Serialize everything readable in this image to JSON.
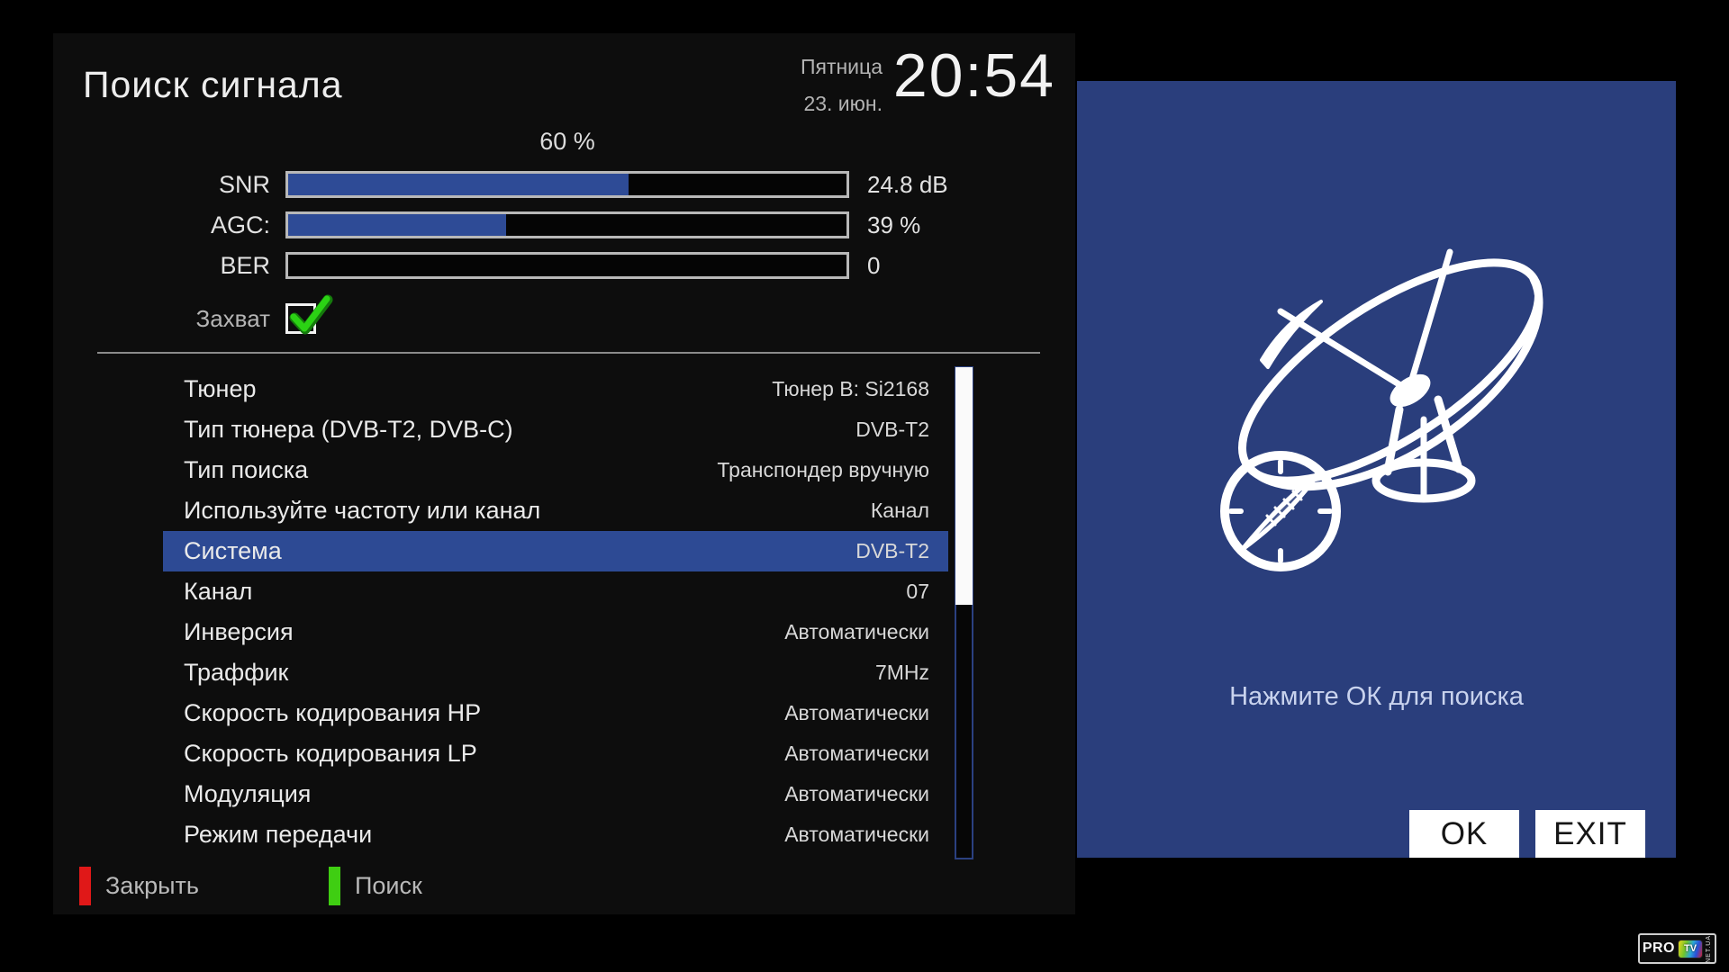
{
  "header": {
    "title": "Поиск сигнала",
    "weekday": "Пятница",
    "date": "23. июн.",
    "time": "20:54"
  },
  "signal": {
    "quality": "60 %",
    "bars": [
      {
        "label": "SNR",
        "value": "24.8 dB",
        "percent": 61
      },
      {
        "label": "AGC:",
        "value": "39 %",
        "percent": 39
      },
      {
        "label": "BER",
        "value": "0",
        "percent": 0
      }
    ],
    "lock_label": "Захват",
    "lock_checked": true
  },
  "settings": {
    "rows": [
      {
        "label": "Тюнер",
        "value": "Тюнер B: Si2168",
        "selected": false
      },
      {
        "label": "Тип тюнера (DVB-T2, DVB-C)",
        "value": "DVB-T2",
        "selected": false
      },
      {
        "label": "Тип поиска",
        "value": "Транспондер вручную",
        "selected": false
      },
      {
        "label": "Используйте частоту или канал",
        "value": "Канал",
        "selected": false
      },
      {
        "label": "Система",
        "value": "DVB-T2",
        "selected": true
      },
      {
        "label": "Канал",
        "value": "07",
        "selected": false
      },
      {
        "label": "Инверсия",
        "value": "Автоматически",
        "selected": false
      },
      {
        "label": "Траффик",
        "value": "7MHz",
        "selected": false
      },
      {
        "label": "Скорость кодирования HP",
        "value": "Автоматически",
        "selected": false
      },
      {
        "label": "Скорость кодирования LP",
        "value": "Автоматически",
        "selected": false
      },
      {
        "label": "Модуляция",
        "value": "Автоматически",
        "selected": false
      },
      {
        "label": "Режим передачи",
        "value": "Автоматически",
        "selected": false
      }
    ]
  },
  "footer": {
    "close_label": "Закрыть",
    "search_label": "Поиск"
  },
  "side_panel": {
    "hint": "Нажмите ОК для поиска",
    "ok_label": "OK",
    "exit_label": "EXIT"
  },
  "logo": {
    "pro": "PRO",
    "tv": "TV",
    "suffix": "NET.UA"
  },
  "colors": {
    "bar_fill": "#2e4b96",
    "selected_row": "#2d4a94",
    "side_panel_bg": "#2a3e7c",
    "red_key": "#e01818",
    "green_key": "#3fce12",
    "check_green": "#2bd214"
  }
}
